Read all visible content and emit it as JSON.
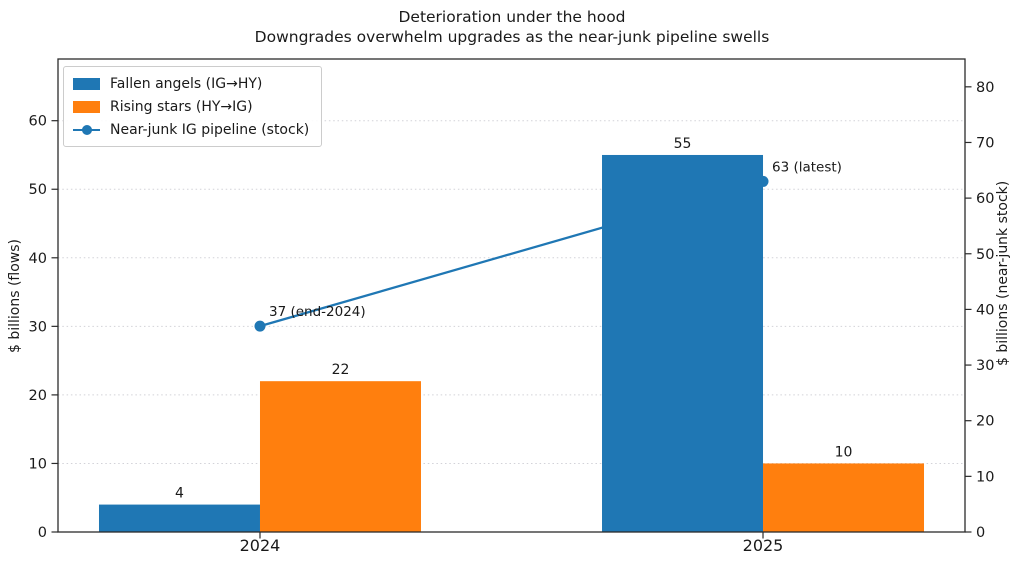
{
  "chart_data": {
    "type": "bar",
    "title_lines": [
      "Deterioration under the hood",
      "Downgrades overwhelm upgrades as the near-junk pipeline swells"
    ],
    "categories": [
      "2024",
      "2025"
    ],
    "series": [
      {
        "name": "Fallen angels (IG→HY)",
        "kind": "bar",
        "axis": "left",
        "color": "#1f77b4",
        "values": [
          4,
          55
        ]
      },
      {
        "name": "Rising stars (HY→IG)",
        "kind": "bar",
        "axis": "left",
        "color": "#ff7f0e",
        "values": [
          22,
          10
        ]
      },
      {
        "name": "Near-junk IG pipeline (stock)",
        "kind": "line",
        "axis": "right",
        "color": "#1f77b4",
        "values": [
          37,
          63
        ],
        "point_annotations": [
          "37 (end-2024)",
          "63 (latest)"
        ]
      }
    ],
    "ylabel_left": "$ billions (flows)",
    "ylabel_right": "$ billions (near-junk stock)",
    "yticks_left": [
      0,
      10,
      20,
      30,
      40,
      50,
      60
    ],
    "yticks_right": [
      0,
      10,
      20,
      30,
      40,
      50,
      60,
      70,
      80
    ],
    "ylim_left": [
      0,
      69
    ],
    "ylim_right": [
      0,
      85
    ],
    "bar_value_labels": true,
    "grid": {
      "axis": "y",
      "which": "left",
      "style": "dotted",
      "skip_zero": true
    },
    "legend_position": "upper left"
  },
  "style": {
    "grid_color": "#d2d2d8",
    "spine_color": "#2b2b2b",
    "tick_color": "#2b2b2b",
    "text_color": "#1a1a1a"
  }
}
